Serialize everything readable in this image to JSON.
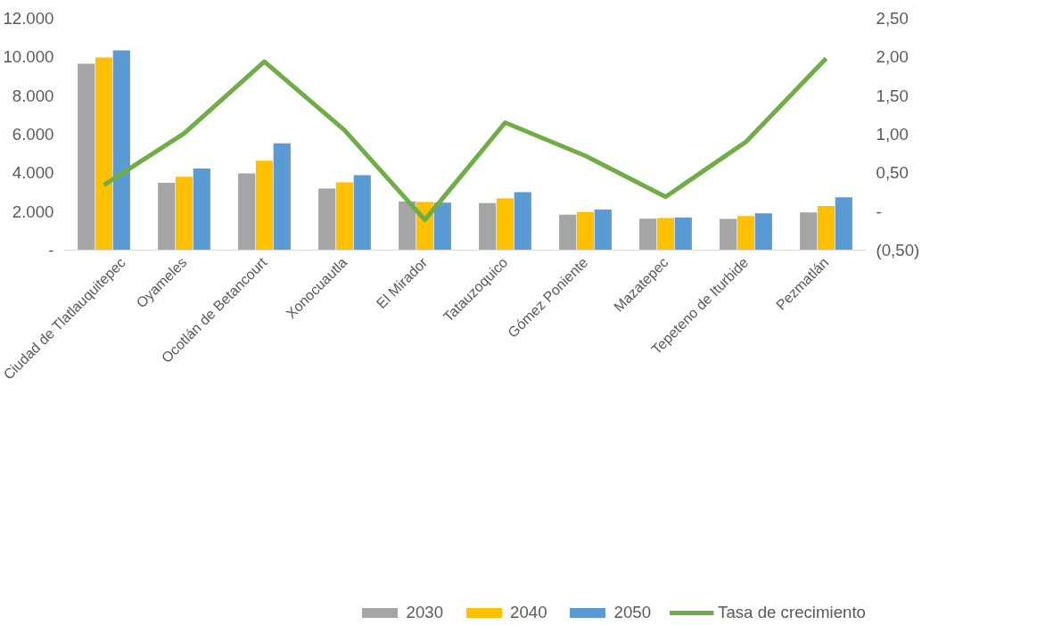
{
  "chart_data": {
    "type": "bar",
    "categories": [
      "Ciudad de Tlatlauquitepec",
      "Oyameles",
      "Ocotlán de Betancourt",
      "Xonocuautla",
      "El Mirador",
      "Tatauzoquico",
      "Gómez Poniente",
      "Mazatepec",
      "Tepeteno de Iturbide",
      "Pezmatlán"
    ],
    "series": [
      {
        "name": "2030",
        "color": "#a5a5a5",
        "values": [
          9650,
          3490,
          3970,
          3190,
          2510,
          2440,
          1830,
          1630,
          1610,
          1950
        ]
      },
      {
        "name": "2040",
        "color": "#ffc000",
        "values": [
          9970,
          3800,
          4630,
          3510,
          2490,
          2680,
          1970,
          1660,
          1760,
          2290
        ]
      },
      {
        "name": "2050",
        "color": "#5b9bd5",
        "values": [
          10340,
          4220,
          5530,
          3880,
          2460,
          3000,
          2100,
          1680,
          1900,
          2730
        ]
      },
      {
        "name": "Tasa de crecimiento",
        "type": "line",
        "axis": "y2",
        "color": "#70ad47",
        "values": [
          0.34,
          1.01,
          1.94,
          1.05,
          -0.11,
          1.15,
          0.72,
          0.19,
          0.9,
          1.98
        ]
      }
    ],
    "ylim": [
      0,
      12000
    ],
    "yticks": [
      {
        "value": 0,
        "label": "-"
      },
      {
        "value": 2000,
        "label": "2.000"
      },
      {
        "value": 4000,
        "label": "4.000"
      },
      {
        "value": 6000,
        "label": "6.000"
      },
      {
        "value": 8000,
        "label": "8.000"
      },
      {
        "value": 10000,
        "label": "10.000"
      },
      {
        "value": 12000,
        "label": "12.000"
      }
    ],
    "y2lim": [
      -0.5,
      2.5
    ],
    "y2ticks": [
      {
        "value": -0.5,
        "label": "(0,50)"
      },
      {
        "value": 0,
        "label": "-"
      },
      {
        "value": 0.5,
        "label": "0,50"
      },
      {
        "value": 1,
        "label": "1,00"
      },
      {
        "value": 1.5,
        "label": "1,50"
      },
      {
        "value": 2,
        "label": "2,00"
      },
      {
        "value": 2.5,
        "label": "2,50"
      }
    ],
    "grid": false,
    "legend": "bottom",
    "line_style": "solid"
  }
}
